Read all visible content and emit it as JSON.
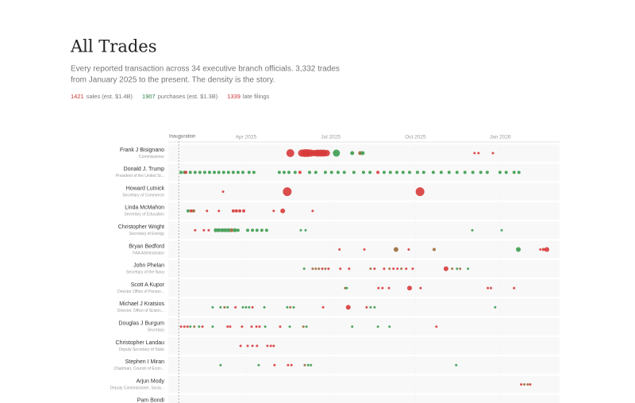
{
  "header": {
    "title": "All Trades",
    "description": [
      "Every reported transaction across 34 executive branch officials. 3,332 trades",
      "from January 2025 to the present. The density is the story."
    ],
    "stats": [
      {
        "value": "1421",
        "label": "sales (est. $1.4B)",
        "color": "#c9362f"
      },
      {
        "value": "1907",
        "label": "purchases (est. $1.3B)",
        "color": "#2f7d44"
      },
      {
        "value": "1339",
        "label": "late filings",
        "color": "#c9362f"
      }
    ]
  },
  "chart_data": {
    "type": "scatter",
    "xlim": [
      0.25,
      14.1
    ],
    "xticks": [
      {
        "value": 3,
        "label": "Apr 2025"
      },
      {
        "value": 6,
        "label": "Jul 2025"
      },
      {
        "value": 9,
        "label": "Oct 2025"
      },
      {
        "value": 12,
        "label": "Jan 2026"
      }
    ],
    "annotation": {
      "x": 0.62,
      "label": "Inauguration"
    },
    "rows": [
      {
        "name": "Frank J Bisignano",
        "role": "Commissioner",
        "points": [
          [
            4.57,
            5,
            "#d73a3a"
          ],
          [
            4.97,
            4.5,
            "#d73a3a"
          ],
          [
            5.08,
            5,
            "#d73a3a"
          ],
          [
            5.19,
            5,
            "#d73a3a"
          ],
          [
            5.3,
            4.5,
            "#d73a3a"
          ],
          [
            5.42,
            4,
            "#d73a3a"
          ],
          [
            5.53,
            4.5,
            "#d73a3a"
          ],
          [
            5.64,
            4.5,
            "#d73a3a"
          ],
          [
            5.75,
            4.5,
            "#d73a3a"
          ],
          [
            5.86,
            4,
            "#d73a3a"
          ],
          [
            6.2,
            4.5,
            "#3d9b4f"
          ],
          [
            6.76,
            2.5,
            "#3d9b4f"
          ],
          [
            7.04,
            2.5,
            "#9b6a3c"
          ],
          [
            7.13,
            2.5,
            "#3d9b4f"
          ],
          [
            11.09,
            1.5,
            "#d73a3a"
          ],
          [
            11.23,
            1.5,
            "#d73a3a"
          ],
          [
            11.74,
            1.5,
            "#d73a3a"
          ]
        ]
      },
      {
        "name": "Donald J. Trump",
        "role": "President of the United St...",
        "points": [
          [
            0.7,
            2,
            "#3d9b4f"
          ],
          [
            0.82,
            2,
            "#3d9b4f"
          ],
          [
            0.87,
            2,
            "#d73a3a"
          ],
          [
            1.03,
            2,
            "#3d9b4f"
          ],
          [
            1.2,
            2,
            "#3d9b4f"
          ],
          [
            1.37,
            2,
            "#3d9b4f"
          ],
          [
            1.54,
            2,
            "#3d9b4f"
          ],
          [
            1.71,
            2,
            "#3d9b4f"
          ],
          [
            1.88,
            2,
            "#3d9b4f"
          ],
          [
            2.04,
            2,
            "#3d9b4f"
          ],
          [
            2.21,
            2,
            "#3d9b4f"
          ],
          [
            2.38,
            2,
            "#3d9b4f"
          ],
          [
            2.55,
            2,
            "#3d9b4f"
          ],
          [
            2.72,
            2,
            "#3d9b4f"
          ],
          [
            2.89,
            2,
            "#3d9b4f"
          ],
          [
            3.11,
            2,
            "#3d9b4f"
          ],
          [
            3.28,
            2,
            "#3d9b4f"
          ],
          [
            4.18,
            2,
            "#3d9b4f"
          ],
          [
            4.35,
            2,
            "#3d9b4f"
          ],
          [
            4.52,
            2,
            "#3d9b4f"
          ],
          [
            4.74,
            2,
            "#3d9b4f"
          ],
          [
            4.91,
            2,
            "#d73a3a"
          ],
          [
            5.25,
            2,
            "#3d9b4f"
          ],
          [
            5.47,
            2,
            "#3d9b4f"
          ],
          [
            5.81,
            2,
            "#3d9b4f"
          ],
          [
            6.03,
            2,
            "#3d9b4f"
          ],
          [
            6.26,
            2,
            "#3d9b4f"
          ],
          [
            6.48,
            2,
            "#3d9b4f"
          ],
          [
            6.82,
            2,
            "#3d9b4f"
          ],
          [
            7.16,
            2,
            "#3d9b4f"
          ],
          [
            7.39,
            2,
            "#3d9b4f"
          ],
          [
            7.67,
            2,
            "#d73a3a"
          ],
          [
            7.89,
            2,
            "#3d9b4f"
          ],
          [
            8.11,
            2,
            "#3d9b4f"
          ],
          [
            8.34,
            2,
            "#3d9b4f"
          ],
          [
            8.56,
            2,
            "#3d9b4f"
          ],
          [
            8.79,
            2,
            "#3d9b4f"
          ],
          [
            9.07,
            2,
            "#3d9b4f"
          ],
          [
            9.29,
            2,
            "#3d9b4f"
          ],
          [
            9.63,
            2,
            "#3d9b4f"
          ],
          [
            9.91,
            2,
            "#3d9b4f"
          ],
          [
            10.19,
            2,
            "#3d9b4f"
          ],
          [
            10.47,
            2,
            "#3d9b4f"
          ],
          [
            10.75,
            2,
            "#3d9b4f"
          ],
          [
            11.03,
            2,
            "#3d9b4f"
          ],
          [
            11.31,
            2,
            "#3d9b4f"
          ],
          [
            11.54,
            2,
            "#3d9b4f"
          ],
          [
            11.99,
            2,
            "#3d9b4f"
          ],
          [
            12.21,
            2,
            "#3d9b4f"
          ],
          [
            12.49,
            2,
            "#3d9b4f"
          ],
          [
            12.66,
            2,
            "#3d9b4f"
          ]
        ]
      },
      {
        "name": "Howard Lutnick",
        "role": "Secretary of Commerce",
        "points": [
          [
            2.19,
            1.5,
            "#d73a3a"
          ],
          [
            4.46,
            5.5,
            "#d73a3a"
          ],
          [
            9.16,
            5.5,
            "#d73a3a"
          ]
        ]
      },
      {
        "name": "Linda McMahon",
        "role": "Secretary of Education",
        "points": [
          [
            0.95,
            2,
            "#3d9b4f"
          ],
          [
            1.06,
            2,
            "#d73a3a"
          ],
          [
            1.15,
            2,
            "#9b6a3c"
          ],
          [
            1.62,
            1.5,
            "#d73a3a"
          ],
          [
            2.04,
            1.5,
            "#d73a3a"
          ],
          [
            2.55,
            2,
            "#d73a3a"
          ],
          [
            2.66,
            2,
            "#d73a3a"
          ],
          [
            2.78,
            2,
            "#d73a3a"
          ],
          [
            2.92,
            2,
            "#d73a3a"
          ],
          [
            3.98,
            1.5,
            "#d73a3a"
          ],
          [
            4.3,
            3,
            "#d73a3a"
          ],
          [
            5.36,
            1.5,
            "#d73a3a"
          ]
        ]
      },
      {
        "name": "Christopher Wright",
        "role": "Secretary of Energy",
        "points": [
          [
            1.2,
            1.5,
            "#d73a3a"
          ],
          [
            1.51,
            1.5,
            "#d73a3a"
          ],
          [
            1.68,
            1.5,
            "#d73a3a"
          ],
          [
            1.93,
            2.5,
            "#3d9b4f"
          ],
          [
            2.04,
            2.5,
            "#3d9b4f"
          ],
          [
            2.16,
            2.5,
            "#3d9b4f"
          ],
          [
            2.27,
            2.5,
            "#3d9b4f"
          ],
          [
            2.38,
            2.5,
            "#3d9b4f"
          ],
          [
            2.49,
            2.5,
            "#9b6a3c"
          ],
          [
            2.61,
            2.5,
            "#3d9b4f"
          ],
          [
            2.72,
            2,
            "#3d9b4f"
          ],
          [
            3.06,
            2,
            "#3d9b4f"
          ],
          [
            3.23,
            2,
            "#3d9b4f"
          ],
          [
            3.39,
            2,
            "#3d9b4f"
          ],
          [
            3.56,
            2,
            "#3d9b4f"
          ],
          [
            3.73,
            2,
            "#3d9b4f"
          ],
          [
            4.94,
            1.5,
            "#3d9b4f"
          ],
          [
            5.11,
            1.5,
            "#3d9b4f"
          ],
          [
            11.01,
            1.5,
            "#3d9b4f"
          ],
          [
            12.05,
            1.5,
            "#3d9b4f"
          ]
        ]
      },
      {
        "name": "Bryan Bedford",
        "role": "FAA Administrator",
        "points": [
          [
            6.31,
            1.5,
            "#d73a3a"
          ],
          [
            7.19,
            1.5,
            "#d73a3a"
          ],
          [
            8.31,
            3,
            "#9b6a3c"
          ],
          [
            8.76,
            1.5,
            "#d73a3a"
          ],
          [
            9.66,
            2,
            "#9b6a3c"
          ],
          [
            12.64,
            3,
            "#3d9b4f"
          ],
          [
            13.42,
            1.5,
            "#d73a3a"
          ],
          [
            13.53,
            2,
            "#d73a3a"
          ],
          [
            13.65,
            3,
            "#d73a3a"
          ]
        ]
      },
      {
        "name": "John Phelan",
        "role": "Secretary of the Navy",
        "points": [
          [
            5.06,
            1.5,
            "#3d9b4f"
          ],
          [
            5.36,
            1.5,
            "#9b6a3c"
          ],
          [
            5.47,
            1.5,
            "#9b6a3c"
          ],
          [
            5.58,
            1.5,
            "#9b6a3c"
          ],
          [
            5.7,
            1.5,
            "#d73a3a"
          ],
          [
            5.81,
            1.5,
            "#9b6a3c"
          ],
          [
            5.92,
            1.5,
            "#d73a3a"
          ],
          [
            6.34,
            1.5,
            "#d73a3a"
          ],
          [
            6.65,
            1.5,
            "#d73a3a"
          ],
          [
            7.41,
            1.5,
            "#9b6a3c"
          ],
          [
            7.55,
            1.5,
            "#d73a3a"
          ],
          [
            7.89,
            1.5,
            "#d73a3a"
          ],
          [
            8.08,
            1.5,
            "#9b6a3c"
          ],
          [
            8.22,
            1.5,
            "#d73a3a"
          ],
          [
            8.36,
            1.5,
            "#d73a3a"
          ],
          [
            8.5,
            1.5,
            "#9b6a3c"
          ],
          [
            8.67,
            1.5,
            "#d73a3a"
          ],
          [
            8.9,
            1.5,
            "#d73a3a"
          ],
          [
            10.08,
            3,
            "#d73a3a"
          ],
          [
            10.3,
            1.5,
            "#9b6a3c"
          ],
          [
            10.47,
            1.5,
            "#3d9b4f"
          ],
          [
            10.58,
            1.5,
            "#9b6a3c"
          ],
          [
            10.86,
            1.5,
            "#3d9b4f"
          ]
        ]
      },
      {
        "name": "Scott A Kupor",
        "role": "Director Office of Person...",
        "points": [
          [
            6.51,
            1.5,
            "#9b6a3c"
          ],
          [
            6.57,
            1.5,
            "#3d9b4f"
          ],
          [
            7.69,
            1.5,
            "#d73a3a"
          ],
          [
            7.83,
            1.5,
            "#d73a3a"
          ],
          [
            8.06,
            1.5,
            "#d73a3a"
          ],
          [
            8.79,
            3,
            "#d73a3a"
          ],
          [
            9.18,
            1.5,
            "#d73a3a"
          ],
          [
            11.56,
            1.5,
            "#d73a3a"
          ],
          [
            11.67,
            1.5,
            "#d73a3a"
          ],
          [
            12.49,
            1.5,
            "#d73a3a"
          ]
        ]
      },
      {
        "name": "Michael J Kratsios",
        "role": "Director, Office of Scienc...",
        "points": [
          [
            1.82,
            1.5,
            "#3d9b4f"
          ],
          [
            2.1,
            1.5,
            "#3d9b4f"
          ],
          [
            2.24,
            1.5,
            "#9b6a3c"
          ],
          [
            2.35,
            1.5,
            "#3d9b4f"
          ],
          [
            2.63,
            1.5,
            "#d73a3a"
          ],
          [
            2.89,
            1.5,
            "#3d9b4f"
          ],
          [
            3.0,
            1.5,
            "#3d9b4f"
          ],
          [
            3.11,
            1.5,
            "#3d9b4f"
          ],
          [
            3.23,
            1.5,
            "#d73a3a"
          ],
          [
            3.65,
            1.5,
            "#3d9b4f"
          ],
          [
            4.46,
            1.5,
            "#3d9b4f"
          ],
          [
            4.57,
            1.5,
            "#9b6a3c"
          ],
          [
            4.69,
            1.5,
            "#3d9b4f"
          ],
          [
            5.73,
            1.5,
            "#d73a3a"
          ],
          [
            6.62,
            3,
            "#d73a3a"
          ],
          [
            7.27,
            1.5,
            "#d73a3a"
          ],
          [
            7.41,
            1.5,
            "#3d9b4f"
          ],
          [
            7.55,
            1.5,
            "#3d9b4f"
          ],
          [
            11.82,
            1.5,
            "#3d9b4f"
          ]
        ]
      },
      {
        "name": "Douglas J Burgum",
        "role": "Secretary",
        "points": [
          [
            0.7,
            1.5,
            "#d73a3a"
          ],
          [
            0.82,
            1.5,
            "#d73a3a"
          ],
          [
            0.93,
            1.5,
            "#d73a3a"
          ],
          [
            1.03,
            1.5,
            "#3d9b4f"
          ],
          [
            1.17,
            1.5,
            "#9b6a3c"
          ],
          [
            1.34,
            1.5,
            "#3d9b4f"
          ],
          [
            1.46,
            1.5,
            "#d73a3a"
          ],
          [
            1.82,
            1.5,
            "#3d9b4f"
          ],
          [
            2.35,
            1.5,
            "#d73a3a"
          ],
          [
            2.44,
            1.5,
            "#d73a3a"
          ],
          [
            2.86,
            1.5,
            "#d73a3a"
          ],
          [
            3.2,
            1.5,
            "#d73a3a"
          ],
          [
            3.37,
            1.5,
            "#d73a3a"
          ],
          [
            3.48,
            1.5,
            "#d73a3a"
          ],
          [
            3.68,
            1.5,
            "#3d9b4f"
          ],
          [
            4.21,
            1.5,
            "#d73a3a"
          ],
          [
            4.55,
            1.5,
            "#3d9b4f"
          ],
          [
            5.03,
            1.5,
            "#9b6a3c"
          ],
          [
            5.14,
            1.5,
            "#3d9b4f"
          ],
          [
            6.76,
            1.5,
            "#3d9b4f"
          ],
          [
            7.67,
            1.5,
            "#3d9b4f"
          ],
          [
            8.08,
            1.5,
            "#3d9b4f"
          ],
          [
            9.74,
            1.5,
            "#d73a3a"
          ]
        ]
      },
      {
        "name": "Christopher Landau",
        "role": "Deputy Secretary of State",
        "points": [
          [
            2.81,
            1.5,
            "#d73a3a"
          ],
          [
            3.06,
            1.5,
            "#d73a3a"
          ],
          [
            3.23,
            1.5,
            "#d73a3a"
          ],
          [
            3.39,
            1.5,
            "#d73a3a"
          ],
          [
            3.76,
            1.5,
            "#d73a3a"
          ],
          [
            3.88,
            1.5,
            "#d73a3a"
          ],
          [
            3.98,
            1.5,
            "#d73a3a"
          ]
        ]
      },
      {
        "name": "Stephen I Miran",
        "role": "Chairman, Council of Econ...",
        "points": [
          [
            2.1,
            1.5,
            "#3d9b4f"
          ],
          [
            3.45,
            1.5,
            "#3d9b4f"
          ],
          [
            4.01,
            1.5,
            "#d73a3a"
          ],
          [
            4.49,
            1.5,
            "#d73a3a"
          ],
          [
            4.61,
            1.5,
            "#d73a3a"
          ],
          [
            5.08,
            1.5,
            "#9b6a3c"
          ],
          [
            5.2,
            1.5,
            "#3d9b4f"
          ],
          [
            5.3,
            1.5,
            "#3d9b4f"
          ],
          [
            10.44,
            1.5,
            "#3d9b4f"
          ]
        ]
      },
      {
        "name": "Arjun Mody",
        "role": "Deputy Commissioner, Socia...",
        "points": [
          [
            12.74,
            1.5,
            "#d73a3a"
          ],
          [
            12.85,
            1.5,
            "#9b6a3c"
          ],
          [
            12.97,
            1.5,
            "#9b6a3c"
          ],
          [
            13.06,
            1.5,
            "#d73a3a"
          ]
        ]
      },
      {
        "name": "Pam Bondi",
        "role": "",
        "points": []
      }
    ]
  }
}
